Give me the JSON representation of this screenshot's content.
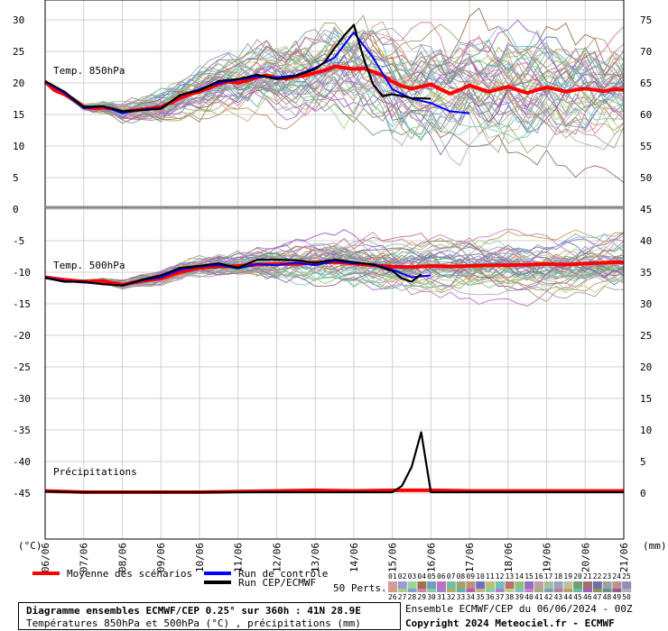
{
  "legend": {
    "mean_label": "Moyenne des scénarios",
    "control_label": "Run de contrôle",
    "cep_label": "Run CEP/ECMWF",
    "perts_label": "50 Perts.",
    "mean_color": "#ff0000",
    "control_color": "#0000ff",
    "cep_color": "#000000"
  },
  "footer": {
    "title_line1": "Diagramme ensembles ECMWF/CEP 0.25° sur 360h : 41N 28.9E",
    "title_line2": "Températures 850hPa et 500hPa (°C) , précipitations (mm)",
    "run_info": "Ensemble ECMWF/CEP du 06/06/2024 - 00Z",
    "copyright": "Copyright 2024 Meteociel.fr - ECMWF"
  },
  "member_swatches": {
    "row1": [
      "01",
      "02",
      "03",
      "04",
      "05",
      "06",
      "07",
      "08",
      "09",
      "10",
      "11",
      "12",
      "13",
      "14",
      "15",
      "16",
      "17",
      "18",
      "19",
      "20",
      "21",
      "22",
      "23",
      "24",
      "25"
    ],
    "row2": [
      "26",
      "27",
      "28",
      "29",
      "30",
      "31",
      "32",
      "33",
      "34",
      "35",
      "36",
      "37",
      "38",
      "39",
      "40",
      "41",
      "42",
      "43",
      "44",
      "45",
      "46",
      "47",
      "48",
      "49",
      "50"
    ],
    "row1_colors": [
      "#d69a9a",
      "#9a9ad6",
      "#9ad69a",
      "#a07050",
      "#70a0c0",
      "#c070c0",
      "#70c0a0",
      "#a0a070",
      "#c09070",
      "#7070c0",
      "#c0c070",
      "#70c0c0",
      "#c07070",
      "#90c070",
      "#9070c0",
      "#c0a0a0",
      "#a0c0a0",
      "#a0a0c0",
      "#c0c0a0",
      "#70a070",
      "#a07070",
      "#7070a0",
      "#a0a0a0",
      "#c09090",
      "#9090c0"
    ],
    "row2_colors": [
      "#d0a080",
      "#a0d080",
      "#80a0d0",
      "#d080a0",
      "#80d0a0",
      "#a080d0",
      "#b0b060",
      "#60b0b0",
      "#b060b0",
      "#d0b080",
      "#80d0b0",
      "#b080d0",
      "#c0d080",
      "#80c0d0",
      "#d080c0",
      "#a0b080",
      "#80a0b0",
      "#b080a0",
      "#c0a060",
      "#60c0a0",
      "#a060c0",
      "#909060",
      "#609090",
      "#906090",
      "#b0b0b0"
    ]
  },
  "chart_data": {
    "type": "line",
    "x_unit": "date",
    "x_ticks": [
      "06/06",
      "07/06",
      "08/06",
      "09/06",
      "10/06",
      "11/06",
      "12/06",
      "13/06",
      "14/06",
      "15/06",
      "16/06",
      "17/06",
      "18/06",
      "19/06",
      "20/06",
      "21/06"
    ],
    "y_left_ticks": [
      30,
      25,
      20,
      15,
      10,
      5,
      0,
      -5,
      -10,
      -15,
      -20,
      -25,
      -30,
      -35,
      -40,
      -45
    ],
    "y_left_unit": "(°C)",
    "y_right_ticks_upper": [
      75,
      70,
      65,
      60,
      55,
      50,
      45
    ],
    "y_right_ticks_lower": [
      40,
      35,
      30,
      25,
      20,
      15,
      10,
      5,
      0
    ],
    "y_right_unit": "(mm)",
    "panel_labels": {
      "t850": "Temp. 850hPa",
      "t500": "Temp. 500hPa",
      "precip": "Précipitations"
    },
    "grid": true,
    "series": [
      {
        "name": "Moyenne des scénarios",
        "panel": "t850",
        "color": "#ff0000",
        "x": [
          0,
          0.25,
          0.5,
          0.75,
          1,
          1.25,
          1.5,
          1.75,
          2,
          2.25,
          2.5,
          2.75,
          3,
          3.25,
          3.5,
          3.75,
          4,
          4.25,
          4.5,
          4.75,
          5,
          5.25,
          5.5,
          5.75,
          6,
          6.25,
          6.5,
          6.75,
          7,
          7.25,
          7.5,
          7.75,
          8,
          8.25,
          8.5,
          8.75,
          9,
          9.25,
          9.5,
          9.75,
          10,
          10.25,
          10.5,
          10.75,
          11,
          11.25,
          11.5,
          11.75,
          12,
          12.25,
          12.5,
          12.75,
          13,
          13.25,
          13.5,
          13.75,
          14,
          14.25,
          14.5,
          14.75,
          15
        ],
        "values": [
          20.2,
          18.8,
          18.2,
          17.3,
          16.2,
          16.0,
          16.1,
          15.9,
          15.4,
          15.6,
          15.8,
          16.0,
          16.2,
          16.8,
          17.6,
          18.2,
          18.6,
          19.2,
          19.8,
          20.2,
          20.0,
          20.4,
          20.9,
          21.2,
          20.8,
          20.7,
          21.0,
          21.2,
          21.6,
          22.0,
          22.6,
          22.4,
          22.2,
          22.3,
          21.8,
          21.2,
          20.2,
          19.5,
          19.1,
          19.4,
          19.8,
          19.0,
          18.3,
          18.9,
          19.6,
          19.1,
          18.6,
          19.0,
          19.4,
          18.9,
          18.4,
          18.9,
          19.3,
          19.0,
          18.6,
          18.9,
          19.1,
          18.9,
          18.7,
          19.0,
          18.9
        ]
      },
      {
        "name": "Run de contrôle",
        "panel": "t850",
        "color": "#0000ff",
        "x": [
          0,
          0.5,
          1,
          1.5,
          2,
          2.5,
          3,
          3.5,
          4,
          4.5,
          5,
          5.5,
          6,
          6.5,
          7,
          7.5,
          8,
          8.5,
          9,
          9.5,
          10,
          10.5,
          11
        ],
        "values": [
          20.2,
          18.4,
          16.0,
          16.3,
          15.2,
          15.8,
          16.0,
          18.0,
          19.0,
          20.0,
          20.5,
          21.0,
          20.9,
          21.2,
          22.4,
          24.0,
          28.0,
          24.0,
          19.0,
          17.5,
          16.8,
          15.5,
          15.2
        ]
      },
      {
        "name": "Run CEP/ECMWF",
        "panel": "t850",
        "color": "#000000",
        "x": [
          0,
          0.5,
          1,
          1.5,
          2,
          2.5,
          3,
          3.5,
          4,
          4.5,
          5,
          5.5,
          6,
          6.5,
          7,
          7.25,
          7.5,
          7.75,
          8,
          8.25,
          8.5,
          8.75,
          9,
          9.5,
          10
        ],
        "values": [
          20.3,
          18.6,
          16.2,
          16.3,
          15.5,
          15.7,
          15.9,
          18.1,
          18.8,
          20.3,
          20.6,
          21.3,
          20.6,
          21.1,
          22.2,
          23.3,
          25.5,
          27.5,
          29.2,
          24.0,
          19.8,
          17.9,
          18.2,
          17.6,
          17.5
        ]
      },
      {
        "name": "Moyenne des scénarios",
        "panel": "t500",
        "color": "#ff0000",
        "x": [
          0,
          0.5,
          1,
          1.5,
          2,
          2.5,
          3,
          3.5,
          4,
          4.5,
          5,
          5.5,
          6,
          6.5,
          7,
          7.5,
          8,
          8.5,
          9,
          9.5,
          10,
          10.5,
          11,
          11.5,
          12,
          12.5,
          13,
          13.5,
          14,
          14.5,
          15
        ],
        "values": [
          -10.8,
          -11.2,
          -11.5,
          -11.4,
          -12.0,
          -11.4,
          -11.0,
          -10.0,
          -9.3,
          -9.1,
          -9.0,
          -8.8,
          -8.7,
          -8.7,
          -8.5,
          -8.4,
          -8.6,
          -8.9,
          -9.1,
          -9.2,
          -9.0,
          -9.1,
          -9.0,
          -8.9,
          -8.9,
          -8.8,
          -8.7,
          -8.8,
          -8.6,
          -8.5,
          -8.4
        ]
      },
      {
        "name": "Run de contrôle",
        "panel": "t500",
        "color": "#0000ff",
        "x": [
          0,
          0.5,
          1,
          1.5,
          2,
          2.5,
          3,
          3.5,
          4,
          4.5,
          5,
          5.5,
          6,
          6.5,
          7,
          7.5,
          8,
          8.5,
          9,
          9.5,
          10
        ],
        "values": [
          -10.8,
          -11.4,
          -11.6,
          -11.9,
          -12.1,
          -11.3,
          -10.8,
          -9.6,
          -9.1,
          -8.9,
          -9.4,
          -8.7,
          -8.9,
          -8.5,
          -8.9,
          -8.2,
          -8.6,
          -8.7,
          -9.6,
          -10.8,
          -10.5
        ]
      },
      {
        "name": "Run CEP/ECMWF",
        "panel": "t500",
        "color": "#000000",
        "x": [
          0,
          0.5,
          1,
          1.5,
          2,
          2.5,
          3,
          3.5,
          4,
          4.5,
          5,
          5.5,
          6,
          6.5,
          7,
          7.5,
          8,
          8.5,
          9,
          9.25,
          9.5,
          9.75
        ],
        "values": [
          -10.9,
          -11.5,
          -11.5,
          -11.9,
          -12.1,
          -11.2,
          -10.5,
          -9.3,
          -9.0,
          -8.6,
          -9.3,
          -8.0,
          -8.0,
          -8.1,
          -8.5,
          -8.0,
          -8.4,
          -8.8,
          -9.8,
          -11.0,
          -11.5,
          -10.3
        ]
      },
      {
        "name": "Moyenne des scénarios",
        "panel": "precip",
        "color": "#ff0000",
        "x": [
          0,
          1,
          2,
          3,
          4,
          5,
          6,
          7,
          8,
          9,
          10,
          11,
          12,
          13,
          14,
          15
        ],
        "values": [
          0.2,
          0,
          0,
          0,
          0,
          0.1,
          0.2,
          0.3,
          0.2,
          0.3,
          0.3,
          0.2,
          0.2,
          0.2,
          0.2,
          0.2
        ]
      },
      {
        "name": "Run CEP/ECMWF",
        "panel": "precip",
        "color": "#000000",
        "x": [
          0,
          1,
          2,
          3,
          4,
          5,
          6,
          7,
          8,
          9,
          9.25,
          9.5,
          9.75,
          10,
          11,
          12,
          13,
          14,
          15
        ],
        "values": [
          0.1,
          0,
          0,
          0,
          0,
          0,
          0,
          0,
          0,
          0,
          1.0,
          4.0,
          9.5,
          0,
          0,
          0,
          0,
          0,
          0
        ]
      }
    ]
  }
}
